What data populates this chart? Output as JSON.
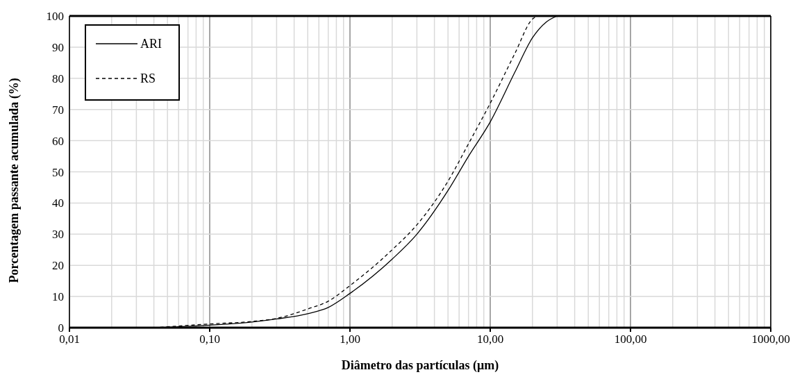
{
  "chart_data": {
    "type": "line",
    "xlabel": "Diâmetro das partículas (μm)",
    "ylabel": "Porcentagem passante acumulada (%)",
    "log": "x",
    "grid": true,
    "legend": "top left",
    "marker": "none",
    "xlim": [
      0.01,
      1000
    ],
    "xticks": [
      {
        "value": 0.01,
        "label": "0,01"
      },
      {
        "value": 0.02,
        "label": null
      },
      {
        "value": 0.03,
        "label": null
      },
      {
        "value": 0.04,
        "label": null
      },
      {
        "value": 0.05,
        "label": null
      },
      {
        "value": 0.06,
        "label": null
      },
      {
        "value": 0.07,
        "label": null
      },
      {
        "value": 0.08,
        "label": null
      },
      {
        "value": 0.09,
        "label": null
      },
      {
        "value": 0.1,
        "label": "0,10"
      },
      {
        "value": 0.2,
        "label": null
      },
      {
        "value": 0.3,
        "label": null
      },
      {
        "value": 0.4,
        "label": null
      },
      {
        "value": 0.5,
        "label": null
      },
      {
        "value": 0.6,
        "label": null
      },
      {
        "value": 0.7,
        "label": null
      },
      {
        "value": 0.8,
        "label": null
      },
      {
        "value": 0.9,
        "label": null
      },
      {
        "value": 1,
        "label": "1,00"
      },
      {
        "value": 2,
        "label": null
      },
      {
        "value": 3,
        "label": null
      },
      {
        "value": 4,
        "label": null
      },
      {
        "value": 5,
        "label": null
      },
      {
        "value": 6,
        "label": null
      },
      {
        "value": 7,
        "label": null
      },
      {
        "value": 8,
        "label": null
      },
      {
        "value": 9,
        "label": null
      },
      {
        "value": 10,
        "label": "10,00"
      },
      {
        "value": 20,
        "label": null
      },
      {
        "value": 30,
        "label": null
      },
      {
        "value": 40,
        "label": null
      },
      {
        "value": 50,
        "label": null
      },
      {
        "value": 60,
        "label": null
      },
      {
        "value": 70,
        "label": null
      },
      {
        "value": 80,
        "label": null
      },
      {
        "value": 90,
        "label": null
      },
      {
        "value": 100,
        "label": "100,00"
      },
      {
        "value": 200,
        "label": null
      },
      {
        "value": 300,
        "label": null
      },
      {
        "value": 400,
        "label": null
      },
      {
        "value": 500,
        "label": null
      },
      {
        "value": 600,
        "label": null
      },
      {
        "value": 700,
        "label": null
      },
      {
        "value": 800,
        "label": null
      },
      {
        "value": 900,
        "label": null
      },
      {
        "value": 1000,
        "label": "1000,00"
      }
    ],
    "ylim": [
      0,
      100
    ],
    "yticks": [
      0,
      10,
      20,
      30,
      40,
      50,
      60,
      70,
      80,
      90,
      100
    ],
    "series": [
      {
        "name": "ARI",
        "color": "#000000",
        "line_style": "solid",
        "x": [
          0.04,
          0.1,
          0.2,
          0.3,
          0.5,
          0.7,
          1,
          2,
          3,
          5,
          7,
          10,
          15,
          20,
          25,
          30
        ],
        "values": [
          0,
          0.8,
          1.8,
          2.8,
          4.5,
          6.5,
          11,
          22,
          30,
          44,
          55,
          66,
          82,
          93,
          98,
          100
        ]
      },
      {
        "name": "RS",
        "color": "#000000",
        "line_style": "dashed",
        "x": [
          0.04,
          0.1,
          0.2,
          0.3,
          0.5,
          0.7,
          1,
          2,
          3,
          5,
          7,
          10,
          15,
          20,
          22,
          30
        ],
        "values": [
          0,
          1.2,
          2,
          3,
          6,
          8.5,
          13.5,
          25,
          33,
          47,
          59,
          72,
          88,
          99,
          100,
          100
        ]
      }
    ]
  }
}
